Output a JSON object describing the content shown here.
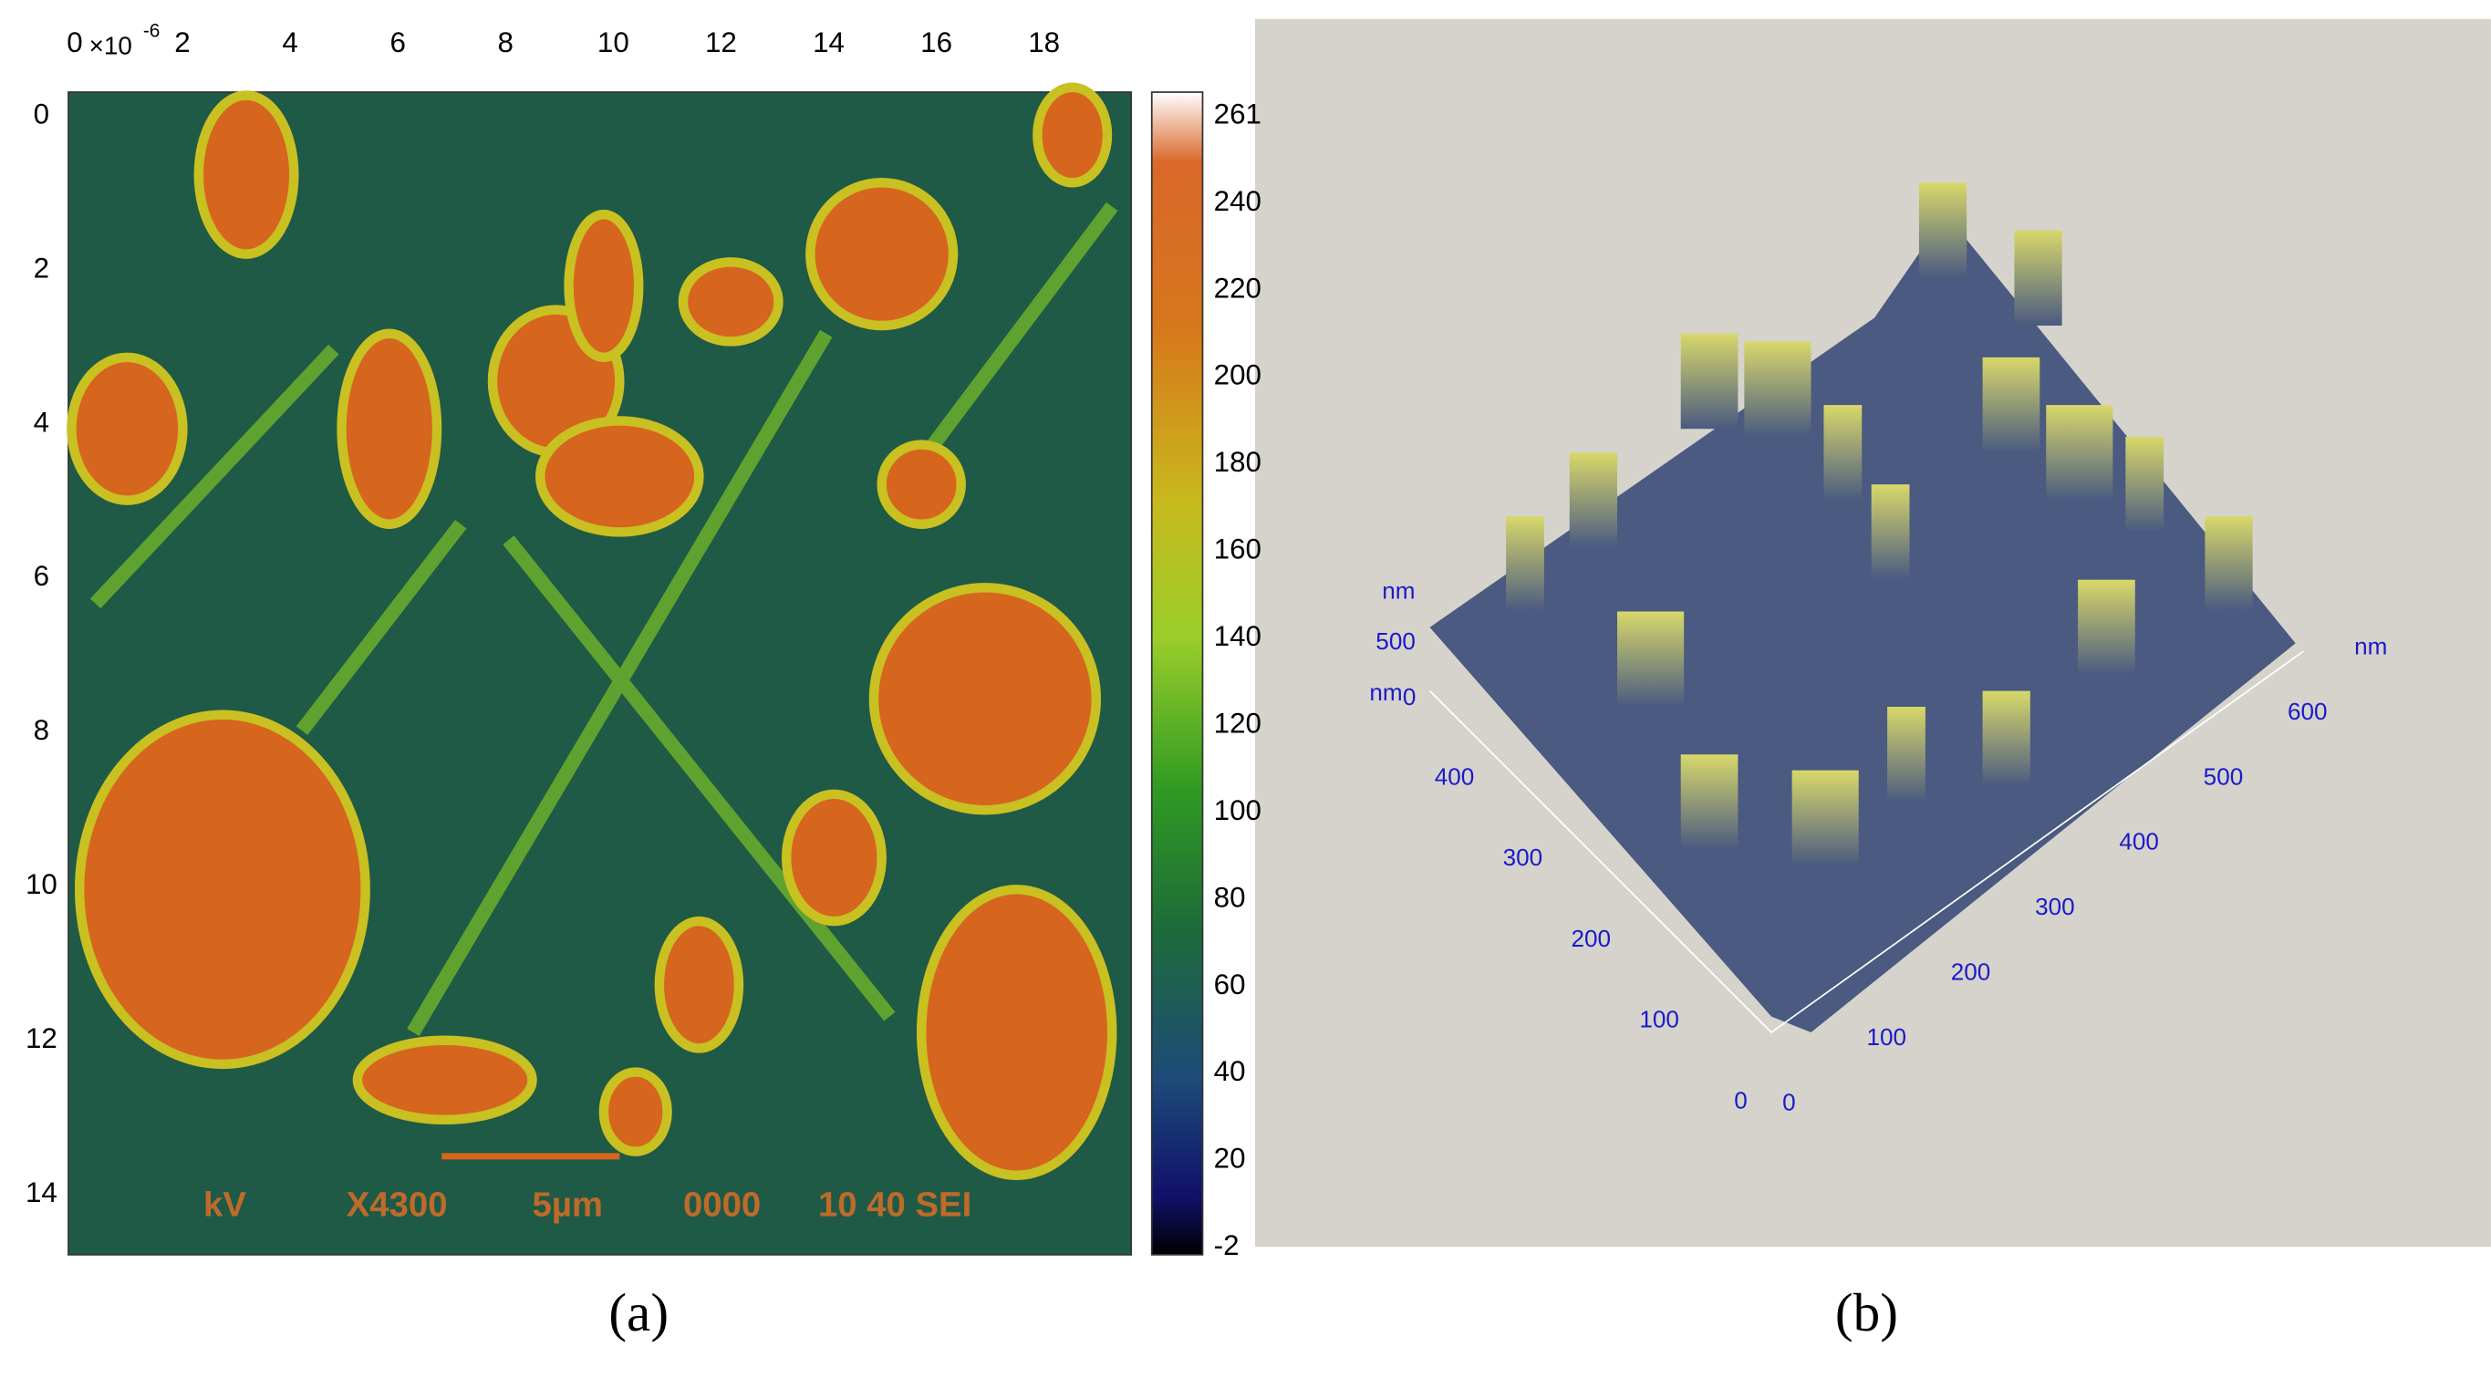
{
  "panel_a": {
    "x_tick_labels": [
      "0",
      "2",
      "4",
      "6",
      "8",
      "10",
      "12",
      "14",
      "16",
      "18"
    ],
    "x_scale_label": "×10",
    "x_scale_exponent": "-6",
    "y_tick_labels": [
      "0",
      "2",
      "4",
      "6",
      "8",
      "10",
      "12",
      "14"
    ],
    "colorbar_labels": [
      "261",
      "240",
      "220",
      "200",
      "180",
      "160",
      "140",
      "120",
      "100",
      "80",
      "60",
      "40",
      "20",
      "-2"
    ],
    "overlay": [
      "kV",
      "X4300",
      "5µm",
      "0000",
      "10 40 SEI"
    ],
    "caption": "(a)"
  },
  "panel_b": {
    "z_unit": "nm",
    "z_tick_labels": [
      "500",
      "0"
    ],
    "z_unit_2": "nm",
    "left_axis_labels": [
      "400",
      "300",
      "200",
      "100",
      "0"
    ],
    "right_axis_labels": [
      "0",
      "100",
      "200",
      "300",
      "400",
      "500",
      "600"
    ],
    "right_unit": "nm",
    "caption": "(b)"
  }
}
